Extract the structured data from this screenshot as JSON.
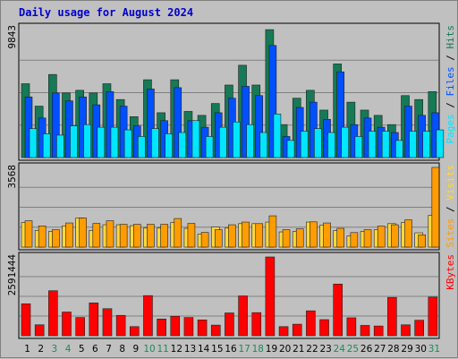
{
  "colors": {
    "background": "#c0c0c0",
    "panel_border": "#000000",
    "gridline": "#808080",
    "pages": "#00e6ff",
    "files": "#0050ff",
    "hits": "#157a55",
    "visits": "#ffd83a",
    "sites": "#ff9c00",
    "kbytes": "#ff0000",
    "weekday_tick": "#000000",
    "weekend_tick": "#1b8a5a",
    "title": "#0000cc"
  },
  "chart_data": [
    {
      "type": "bar",
      "id": "hits-files-pages",
      "title": "Daily usage for August 2024",
      "ylabel_max": "9843",
      "ylim": [
        0,
        9843
      ],
      "grid": true,
      "legend_right": [
        {
          "label": "Pages",
          "color_key": "pages"
        },
        {
          "label": " / ",
          "color_key": "weekday_tick"
        },
        {
          "label": "Files",
          "color_key": "files"
        },
        {
          "label": " / ",
          "color_key": "weekday_tick"
        },
        {
          "label": "Hits",
          "color_key": "hits"
        }
      ],
      "categories": [
        "1",
        "2",
        "3",
        "4",
        "5",
        "6",
        "7",
        "8",
        "9",
        "10",
        "11",
        "12",
        "13",
        "14",
        "15",
        "16",
        "17",
        "18",
        "19",
        "20",
        "21",
        "22",
        "23",
        "24",
        "25",
        "26",
        "27",
        "28",
        "29",
        "30",
        "31"
      ],
      "series": [
        {
          "name": "Hits",
          "color_key": "hits",
          "values": [
            5600,
            3900,
            6300,
            4900,
            5100,
            4900,
            5600,
            4400,
            3100,
            5900,
            3400,
            5900,
            3500,
            3200,
            4100,
            5500,
            7000,
            5500,
            9700,
            2500,
            4500,
            5100,
            3600,
            7100,
            4200,
            3600,
            3200,
            2500,
            4700,
            4400,
            5000
          ]
        },
        {
          "name": "Files",
          "color_key": "files",
          "values": [
            4600,
            3000,
            4900,
            4300,
            4600,
            4000,
            5000,
            3900,
            2400,
            5200,
            2800,
            5300,
            2800,
            2300,
            3400,
            4500,
            5400,
            4700,
            8500,
            1600,
            3800,
            4200,
            2900,
            6500,
            2500,
            3000,
            2300,
            1900,
            3900,
            3200,
            3400
          ]
        },
        {
          "name": "Pages",
          "color_key": "pages",
          "values": [
            2200,
            1800,
            1700,
            2400,
            2500,
            2300,
            2300,
            2100,
            1600,
            2200,
            1800,
            1900,
            2800,
            1600,
            2300,
            2700,
            2500,
            1900,
            3300,
            1300,
            2000,
            2200,
            1900,
            2300,
            1600,
            2000,
            2000,
            1300,
            2000,
            2000,
            2100
          ]
        }
      ]
    },
    {
      "type": "bar",
      "id": "visits-sites",
      "ylabel_max": "3568",
      "ylim": [
        0,
        3568
      ],
      "grid": true,
      "legend_right": [
        {
          "label": "Sites",
          "color_key": "sites"
        },
        {
          "label": " / ",
          "color_key": "weekday_tick"
        },
        {
          "label": "Visits",
          "color_key": "visits"
        }
      ],
      "categories": [
        "1",
        "2",
        "3",
        "4",
        "5",
        "6",
        "7",
        "8",
        "9",
        "10",
        "11",
        "12",
        "13",
        "14",
        "15",
        "16",
        "17",
        "18",
        "19",
        "20",
        "21",
        "22",
        "23",
        "24",
        "25",
        "26",
        "27",
        "28",
        "29",
        "30",
        "31"
      ],
      "series": [
        {
          "name": "Visits",
          "color_key": "visits",
          "values": [
            1100,
            750,
            700,
            950,
            1300,
            750,
            1000,
            1000,
            960,
            850,
            850,
            1100,
            840,
            580,
            900,
            850,
            1050,
            1050,
            1120,
            680,
            700,
            1120,
            980,
            740,
            500,
            700,
            780,
            1050,
            1100,
            640,
            1420
          ]
        },
        {
          "name": "Sites",
          "color_key": "sites",
          "values": [
            1180,
            950,
            780,
            1080,
            1300,
            1060,
            1180,
            1020,
            1020,
            1020,
            1020,
            1280,
            1060,
            660,
            780,
            1000,
            1120,
            1050,
            1400,
            780,
            820,
            1130,
            1080,
            840,
            650,
            780,
            940,
            1000,
            1220,
            550,
            3568
          ]
        }
      ]
    },
    {
      "type": "bar",
      "id": "kbytes",
      "ylabel_max": "2591444",
      "ylim": [
        0,
        2591444
      ],
      "grid": true,
      "legend_right": [
        {
          "label": "KBytes",
          "color_key": "kbytes"
        }
      ],
      "categories": [
        "1",
        "2",
        "3",
        "4",
        "5",
        "6",
        "7",
        "8",
        "9",
        "10",
        "11",
        "12",
        "13",
        "14",
        "15",
        "16",
        "17",
        "18",
        "19",
        "20",
        "21",
        "22",
        "23",
        "24",
        "25",
        "26",
        "27",
        "28",
        "29",
        "30",
        "31"
      ],
      "series": [
        {
          "name": "KBytes",
          "color_key": "kbytes",
          "values": [
            1050000,
            360000,
            1480000,
            780000,
            600000,
            1080000,
            890000,
            670000,
            300000,
            1320000,
            550000,
            640000,
            600000,
            520000,
            350000,
            750000,
            1310000,
            760000,
            2591444,
            300000,
            380000,
            820000,
            530000,
            1700000,
            590000,
            340000,
            320000,
            1260000,
            360000,
            510000,
            1270000
          ]
        }
      ]
    }
  ]
}
